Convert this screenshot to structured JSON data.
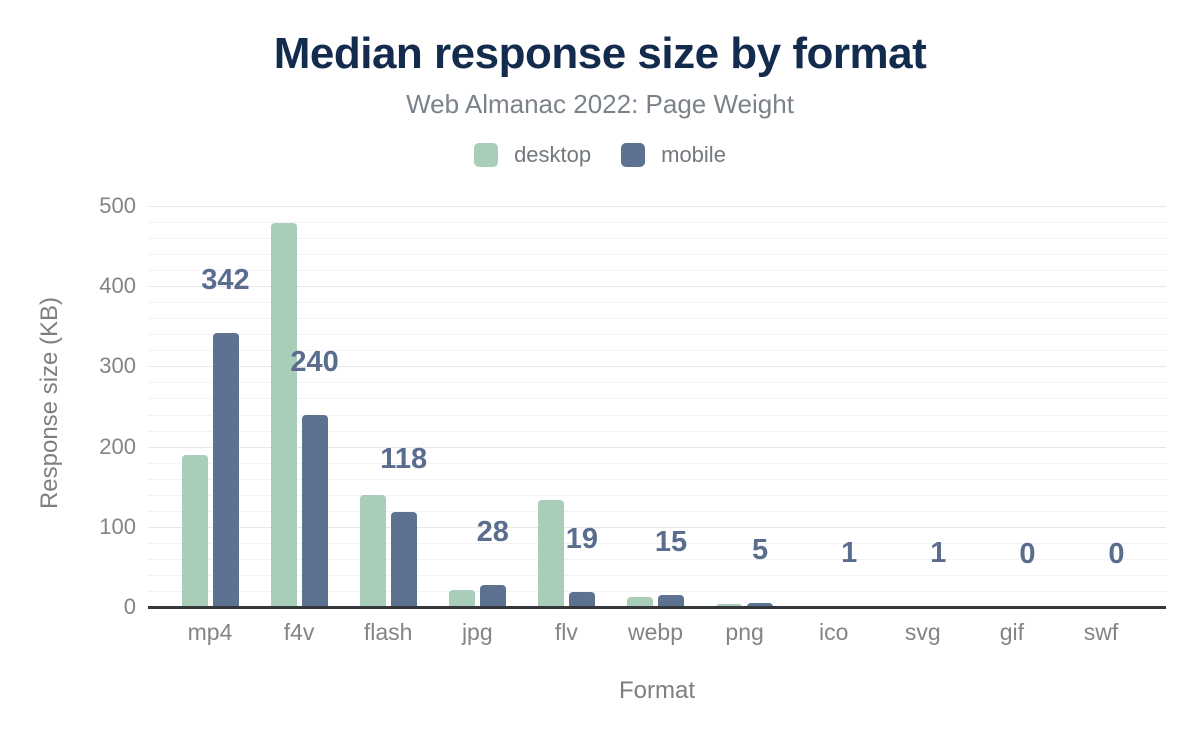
{
  "header": {
    "title": "Median response size by format",
    "subtitle": "Web Almanac 2022: Page Weight"
  },
  "chart_data": {
    "type": "bar",
    "title": "Median response size by format",
    "subtitle": "Web Almanac 2022: Page Weight",
    "categories": [
      "mp4",
      "f4v",
      "flash",
      "jpg",
      "flv",
      "webp",
      "png",
      "ico",
      "svg",
      "gif",
      "swf"
    ],
    "series": [
      {
        "name": "desktop",
        "color": "#a8cdb8",
        "values": [
          190,
          479,
          140,
          21,
          134,
          12,
          4,
          1,
          1,
          0,
          0
        ]
      },
      {
        "name": "mobile",
        "color": "#5d7190",
        "values": [
          342,
          240,
          118,
          28,
          19,
          15,
          5,
          1,
          1,
          0,
          0
        ]
      }
    ],
    "data_labels": {
      "series": "mobile",
      "values": [
        "342",
        "240",
        "118",
        "28",
        "19",
        "15",
        "5",
        "1",
        "1",
        "0",
        "0"
      ],
      "color": "#5a6d8f"
    },
    "xlabel": "Format",
    "ylabel": "Response size (KB)",
    "ylim": [
      0,
      500
    ],
    "yticks": [
      0,
      100,
      200,
      300,
      400,
      500
    ],
    "minor_gridline_step": 20,
    "grid": "horizontal-only",
    "legend_position": "top"
  },
  "colors": {
    "background": "#ffffff",
    "title": "#132b4d",
    "subtitle": "#7b828a",
    "legend_text": "#72787e",
    "tick_label": "#848484",
    "axis_title": "#7f7f7f",
    "axis_line": "#35383a",
    "major_grid": "#e7e7e7",
    "minor_grid": "#f3f3f3",
    "value_label": "#5a6d8f"
  }
}
